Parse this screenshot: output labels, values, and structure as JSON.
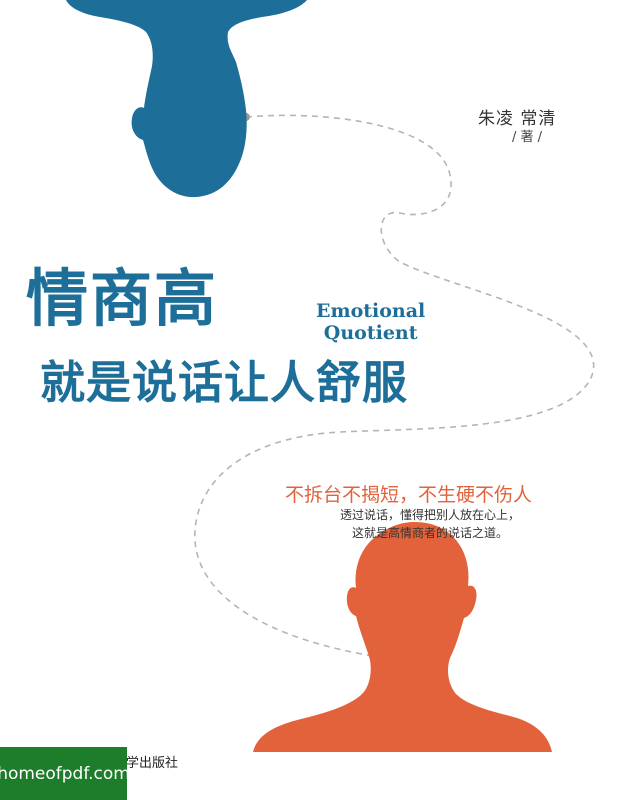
{
  "cover": {
    "authors": "朱凌  常清",
    "author_role": "/ 著 /",
    "title_main": "情商高",
    "title_en_line1": "Emotional",
    "title_en_line2": "Quotient",
    "title_sub": "就是说话让人舒服",
    "tagline": "不拆台不揭短，不生硬不伤人",
    "desc_line1": "透过说话，懂得把别人放在心上，",
    "desc_line2": "这就是高情商者的说话之道。",
    "publisher": "学出版社",
    "watermark": "homeofpdf.com"
  },
  "colors": {
    "blue": "#1d6e98",
    "orange": "#e2623c",
    "dash": "#b5b5b5",
    "watermark_bg": "#1e7d2a"
  }
}
